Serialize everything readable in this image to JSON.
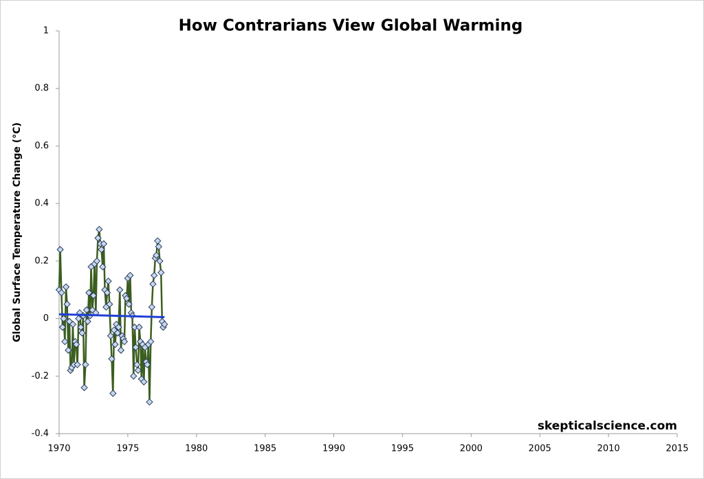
{
  "chart_data": {
    "type": "line",
    "title": "How Contrarians View Global Warming",
    "y_label": "Global Surface Temperature Change (°C)",
    "annotation": "skepticalscience.com",
    "x": [
      1970.0,
      1970.08,
      1970.17,
      1970.25,
      1970.33,
      1970.42,
      1970.5,
      1970.58,
      1970.67,
      1970.75,
      1970.83,
      1970.92,
      1971.0,
      1971.08,
      1971.17,
      1971.25,
      1971.33,
      1971.42,
      1971.5,
      1971.58,
      1971.67,
      1971.75,
      1971.83,
      1971.92,
      1972.0,
      1972.08,
      1972.17,
      1972.25,
      1972.33,
      1972.42,
      1972.5,
      1972.58,
      1972.67,
      1972.75,
      1972.83,
      1972.92,
      1973.0,
      1973.08,
      1973.17,
      1973.25,
      1973.33,
      1973.42,
      1973.5,
      1973.58,
      1973.67,
      1973.75,
      1973.83,
      1973.92,
      1974.0,
      1974.08,
      1974.17,
      1974.25,
      1974.33,
      1974.42,
      1974.5,
      1974.58,
      1974.67,
      1974.75,
      1974.83,
      1974.92,
      1975.0,
      1975.08,
      1975.17,
      1975.25,
      1975.33,
      1975.42,
      1975.5,
      1975.58,
      1975.67,
      1975.75,
      1975.83,
      1975.92,
      1976.0,
      1976.08,
      1976.17,
      1976.25,
      1976.33,
      1976.42,
      1976.5,
      1976.58,
      1976.67,
      1976.75,
      1976.83,
      1976.92,
      1977.0,
      1977.08,
      1977.17,
      1977.25,
      1977.33,
      1977.42,
      1977.5,
      1977.58,
      1977.67
    ],
    "series": [
      {
        "color": "#3b5e1f",
        "marker_color": "#c6d9f1",
        "values": [
          0.1,
          0.24,
          0.09,
          -0.03,
          0.0,
          -0.08,
          0.11,
          0.05,
          -0.11,
          -0.01,
          -0.18,
          -0.17,
          -0.02,
          -0.16,
          -0.08,
          -0.09,
          -0.16,
          0.0,
          0.02,
          -0.03,
          -0.05,
          0.01,
          -0.24,
          -0.16,
          0.03,
          -0.01,
          0.09,
          0.01,
          0.18,
          0.03,
          0.08,
          0.19,
          0.02,
          0.2,
          0.28,
          0.31,
          0.26,
          0.24,
          0.18,
          0.26,
          0.1,
          0.04,
          0.09,
          0.13,
          0.05,
          -0.06,
          -0.14,
          -0.26,
          -0.04,
          -0.09,
          -0.02,
          -0.05,
          -0.03,
          0.1,
          -0.11,
          -0.06,
          -0.07,
          -0.08,
          0.08,
          0.07,
          0.14,
          0.05,
          0.15,
          0.02,
          0.01,
          -0.2,
          -0.03,
          -0.1,
          -0.16,
          -0.18,
          -0.03,
          -0.08,
          -0.21,
          -0.09,
          -0.22,
          -0.1,
          -0.15,
          -0.16,
          -0.09,
          -0.29,
          -0.08,
          0.04,
          0.12,
          0.15,
          0.21,
          0.22,
          0.27,
          0.25,
          0.2,
          0.16,
          -0.01,
          -0.03,
          -0.02
        ]
      }
    ],
    "trend": {
      "color": "#1f3fd6",
      "x": [
        1970.0,
        1977.67
      ],
      "values": [
        0.015,
        0.005
      ]
    },
    "xlim": [
      1970,
      2015
    ],
    "xticks": [
      1970,
      1975,
      1980,
      1985,
      1990,
      1995,
      2000,
      2005,
      2010,
      2015
    ],
    "ylim": [
      -0.4,
      1
    ],
    "yticks": [
      -0.4,
      -0.2,
      0,
      0.2,
      0.4,
      0.6,
      0.8,
      1
    ]
  }
}
